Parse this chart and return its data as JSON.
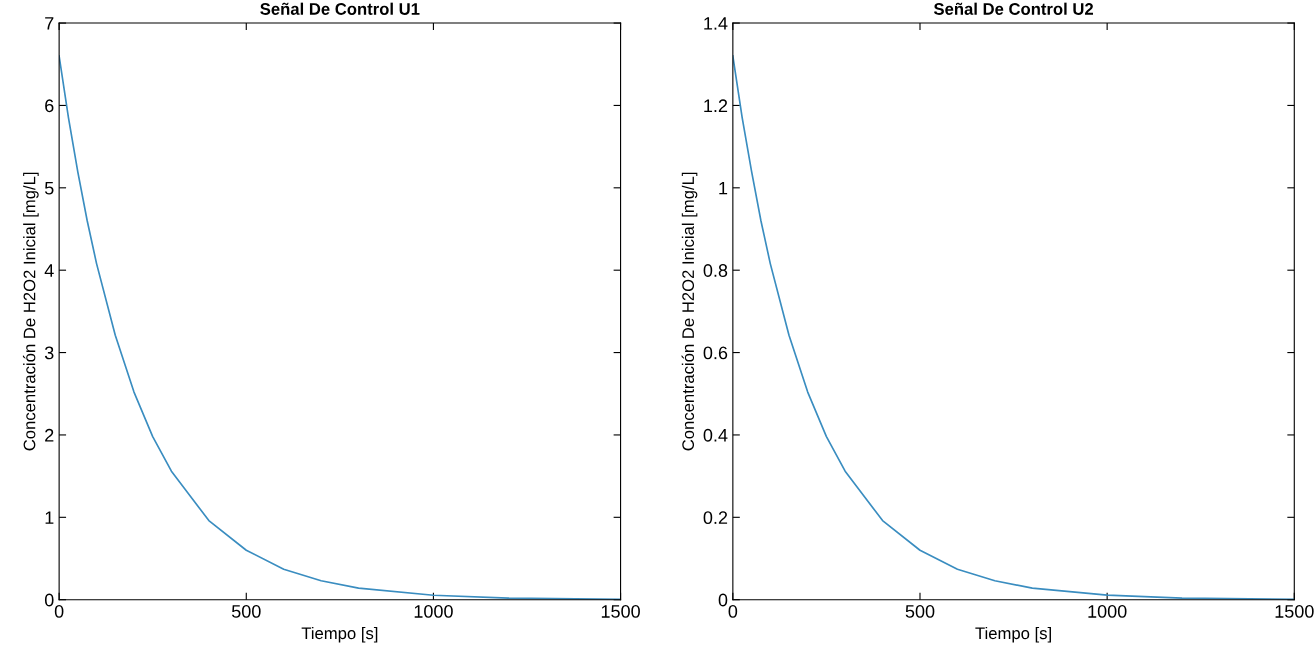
{
  "chart_data": [
    {
      "type": "line",
      "title": "Señal De Control U1",
      "xlabel": "Tiempo [s]",
      "ylabel": "Concentración De H2O2 Inicial [mg/L]",
      "x": [
        0,
        25,
        50,
        75,
        100,
        150,
        200,
        250,
        300,
        400,
        500,
        600,
        700,
        800,
        1000,
        1200,
        1500
      ],
      "series": [
        {
          "color": "#3a8dc0",
          "values": [
            6.6,
            5.85,
            5.19,
            4.6,
            4.08,
            3.21,
            2.52,
            1.98,
            1.56,
            0.96,
            0.6,
            0.37,
            0.23,
            0.14,
            0.054,
            0.02,
            0.005
          ]
        }
      ],
      "xlim": [
        0,
        1500
      ],
      "xticks": [
        0,
        500,
        1000,
        1500
      ],
      "ylim": [
        0,
        7
      ],
      "yticks": [
        0,
        1,
        2,
        3,
        4,
        5,
        6,
        7
      ],
      "grid": false,
      "legend": false
    },
    {
      "type": "line",
      "title": "Señal De Control U2",
      "xlabel": "Tiempo [s]",
      "ylabel": "Concentración De H2O2 Inicial [mg/L]",
      "x": [
        0,
        25,
        50,
        75,
        100,
        150,
        200,
        250,
        300,
        400,
        500,
        600,
        700,
        800,
        1000,
        1200,
        1500
      ],
      "series": [
        {
          "color": "#3a8dc0",
          "values": [
            1.32,
            1.17,
            1.04,
            0.92,
            0.816,
            0.642,
            0.504,
            0.396,
            0.312,
            0.192,
            0.12,
            0.074,
            0.046,
            0.028,
            0.011,
            0.004,
            0.001
          ]
        }
      ],
      "xlim": [
        0,
        1500
      ],
      "xticks": [
        0,
        500,
        1000,
        1500
      ],
      "ylim": [
        0,
        1.4
      ],
      "yticks": [
        0,
        0.2,
        0.4,
        0.6,
        0.8,
        1,
        1.2,
        1.4
      ],
      "grid": false,
      "legend": false
    }
  ]
}
